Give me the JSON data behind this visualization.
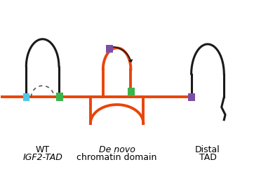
{
  "bg_color": "#ffffff",
  "black_line_color": "#1a1a1a",
  "orange_line_color": "#e8450a",
  "cyan_box_color": "#4dc8e8",
  "green_box_color": "#3ab54a",
  "purple_box_color": "#7b4fa6",
  "dashed_arc_color": "#555555",
  "lw_black": 2.2,
  "lw_orange": 2.8,
  "label_wt_line1": "WT",
  "label_wt_line2": "IGF2-TAD",
  "label_mid_line1": "De novo",
  "label_mid_line2": "chromatin domain",
  "label_right_line1": "Distal",
  "label_right_line2": "TAD",
  "fontsize": 9
}
